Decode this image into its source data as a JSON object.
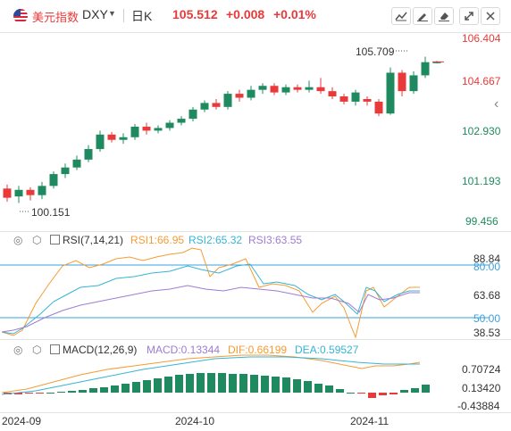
{
  "header": {
    "index_name": "美元指数",
    "symbol": "DXY",
    "period": "日K",
    "last_price": "105.512",
    "change": "+0.008",
    "change_pct": "+0.01%"
  },
  "toolbar": {
    "icons": [
      "line-chart-icon",
      "draw-icon",
      "delete-icon",
      "fullscreen-icon",
      "close-icon"
    ]
  },
  "colors": {
    "up": "#e83a3a",
    "down": "#1f8a5f",
    "price_axis_up": "#e83a3a",
    "price_axis_down": "#1f8a5f"
  },
  "main_chart": {
    "price_axis": [
      "106.404",
      "104.667",
      "102.930",
      "101.193",
      "99.456"
    ],
    "high_label": "105.709",
    "low_label": "100.151"
  },
  "rsi": {
    "title": "RSI(7,14,21)",
    "rsi1": "RSI1:66.95",
    "rsi2": "RSI2:65.32",
    "rsi3": "RSI3:63.55",
    "axis": [
      "88.84",
      "80.00",
      "63.68",
      "50.00",
      "38.53"
    ]
  },
  "macd": {
    "title": "MACD(12,26,9)",
    "macd": "MACD:0.13344",
    "dif": "DIF:0.66199",
    "dea": "DEA:0.59527",
    "axis": [
      "0.70724",
      "0.13420",
      "-0.43884"
    ]
  },
  "time_axis": [
    "2024-09",
    "2024-10",
    "2024-11"
  ],
  "chart_data": {
    "type": "candlestick",
    "candles": [
      {
        "o": 100.7,
        "c": 100.35,
        "h": 100.85,
        "l": 100.2
      },
      {
        "o": 100.4,
        "c": 100.65,
        "h": 100.8,
        "l": 100.15
      },
      {
        "o": 100.65,
        "c": 100.45,
        "h": 100.75,
        "l": 100.25
      },
      {
        "o": 100.45,
        "c": 100.8,
        "h": 100.95,
        "l": 100.3
      },
      {
        "o": 100.8,
        "c": 101.25,
        "h": 101.35,
        "l": 100.7
      },
      {
        "o": 101.25,
        "c": 101.5,
        "h": 101.65,
        "l": 101.1
      },
      {
        "o": 101.5,
        "c": 101.8,
        "h": 101.95,
        "l": 101.4
      },
      {
        "o": 101.8,
        "c": 102.2,
        "h": 102.35,
        "l": 101.7
      },
      {
        "o": 102.2,
        "c": 102.75,
        "h": 102.9,
        "l": 102.1
      },
      {
        "o": 102.75,
        "c": 102.55,
        "h": 102.85,
        "l": 102.45
      },
      {
        "o": 102.55,
        "c": 102.65,
        "h": 102.8,
        "l": 102.4
      },
      {
        "o": 102.65,
        "c": 103.05,
        "h": 103.15,
        "l": 102.55
      },
      {
        "o": 103.05,
        "c": 102.9,
        "h": 103.2,
        "l": 102.75
      },
      {
        "o": 102.9,
        "c": 103.0,
        "h": 103.1,
        "l": 102.8
      },
      {
        "o": 103.0,
        "c": 103.2,
        "h": 103.3,
        "l": 102.9
      },
      {
        "o": 103.2,
        "c": 103.35,
        "h": 103.45,
        "l": 103.1
      },
      {
        "o": 103.35,
        "c": 103.7,
        "h": 103.8,
        "l": 103.25
      },
      {
        "o": 103.7,
        "c": 103.95,
        "h": 104.05,
        "l": 103.6
      },
      {
        "o": 103.95,
        "c": 103.8,
        "h": 104.1,
        "l": 103.7
      },
      {
        "o": 103.8,
        "c": 104.3,
        "h": 104.4,
        "l": 103.7
      },
      {
        "o": 104.3,
        "c": 104.15,
        "h": 104.45,
        "l": 104.0
      },
      {
        "o": 104.15,
        "c": 104.45,
        "h": 104.6,
        "l": 104.05
      },
      {
        "o": 104.45,
        "c": 104.6,
        "h": 104.7,
        "l": 104.3
      },
      {
        "o": 104.6,
        "c": 104.35,
        "h": 104.7,
        "l": 104.25
      },
      {
        "o": 104.35,
        "c": 104.55,
        "h": 104.65,
        "l": 104.25
      },
      {
        "o": 104.55,
        "c": 104.45,
        "h": 104.65,
        "l": 104.35
      },
      {
        "o": 104.45,
        "c": 104.55,
        "h": 104.8,
        "l": 104.35
      },
      {
        "o": 104.55,
        "c": 104.4,
        "h": 104.9,
        "l": 104.3
      },
      {
        "o": 104.4,
        "c": 104.2,
        "h": 104.55,
        "l": 104.1
      },
      {
        "o": 104.2,
        "c": 104.0,
        "h": 104.3,
        "l": 103.9
      },
      {
        "o": 104.0,
        "c": 104.35,
        "h": 104.45,
        "l": 103.85
      },
      {
        "o": 104.1,
        "c": 104.0,
        "h": 104.2,
        "l": 103.85
      },
      {
        "o": 104.0,
        "c": 103.55,
        "h": 104.1,
        "l": 103.45
      },
      {
        "o": 103.55,
        "c": 105.1,
        "h": 105.3,
        "l": 103.5
      },
      {
        "o": 105.1,
        "c": 104.4,
        "h": 105.2,
        "l": 104.2
      },
      {
        "o": 104.4,
        "c": 105.0,
        "h": 105.15,
        "l": 104.3
      },
      {
        "o": 105.0,
        "c": 105.5,
        "h": 105.709,
        "l": 104.9
      },
      {
        "o": 105.5,
        "c": 105.512,
        "h": 105.55,
        "l": 105.45
      }
    ]
  }
}
